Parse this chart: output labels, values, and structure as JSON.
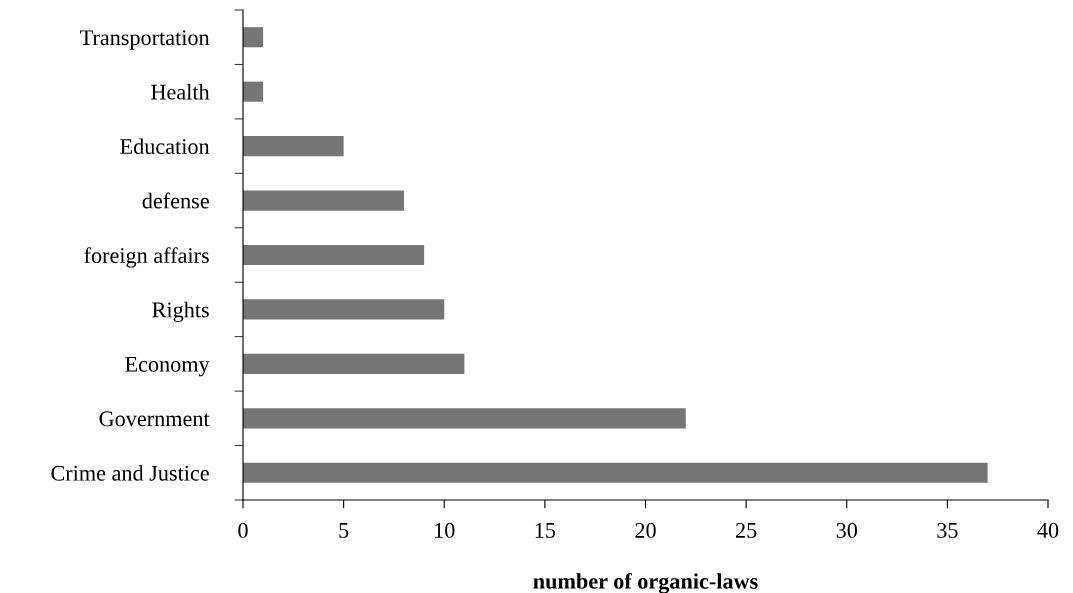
{
  "chart_data": {
    "type": "bar",
    "orientation": "horizontal",
    "xlabel": "number of organic-laws",
    "categories": [
      "Transportation",
      "Health",
      "Education",
      "defense",
      "foreign affairs",
      "Rights",
      "Economy",
      "Government",
      "Crime and Justice"
    ],
    "values": [
      1,
      1,
      5,
      8,
      9,
      10,
      11,
      22,
      37
    ],
    "color": "#767676",
    "xlim": [
      0,
      40
    ],
    "xticks": [
      0,
      5,
      10,
      15,
      20,
      25,
      30,
      35,
      40
    ],
    "grid": false,
    "legend": false
  }
}
